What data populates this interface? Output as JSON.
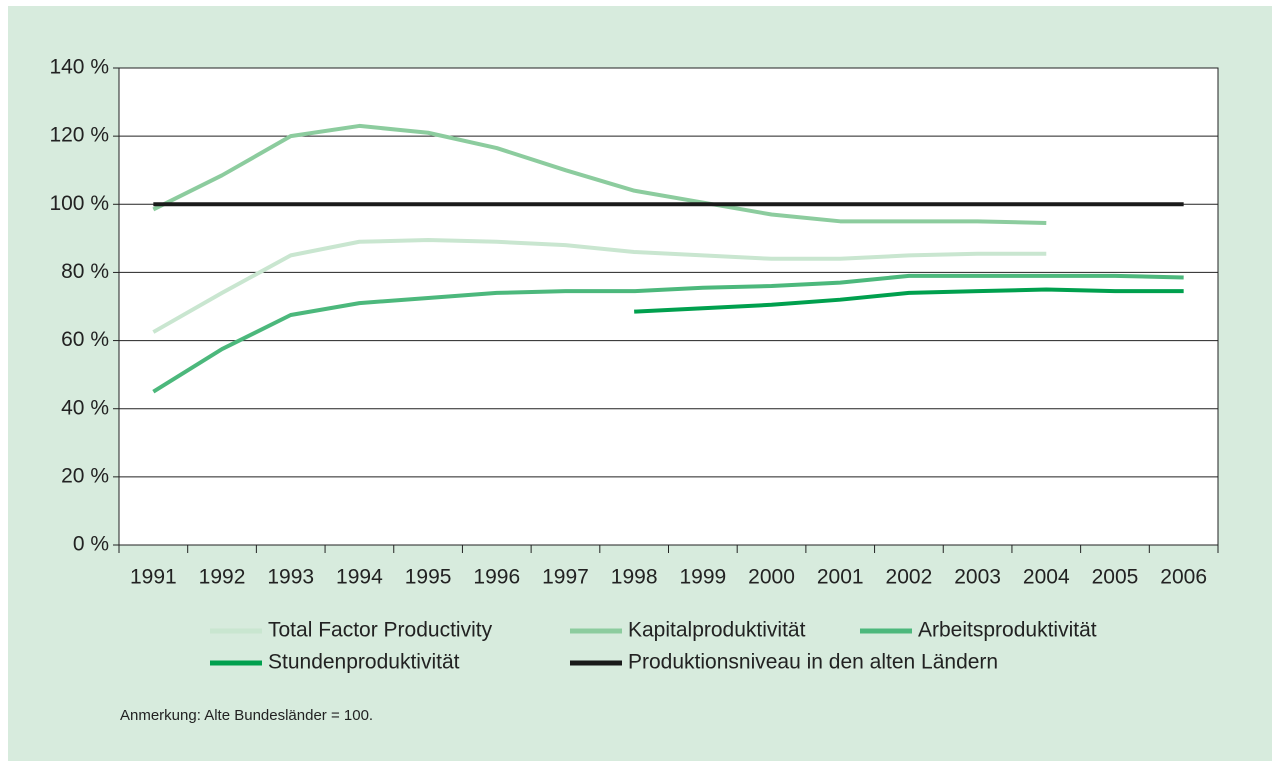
{
  "chart_data": {
    "type": "line",
    "categories": [
      "1991",
      "1992",
      "1993",
      "1994",
      "1995",
      "1996",
      "1997",
      "1998",
      "1999",
      "2000",
      "2001",
      "2002",
      "2003",
      "2004",
      "2005",
      "2006"
    ],
    "series": [
      {
        "name": "Total Factor Productivity",
        "color": "#c9e6d0",
        "values": [
          62.5,
          74,
          85,
          89,
          89.5,
          89,
          88,
          86,
          85,
          84,
          84,
          85,
          85.5,
          85.5,
          null,
          null
        ]
      },
      {
        "name": "Kapitalproduktivität",
        "color": "#8ccc9e",
        "values": [
          98.5,
          108.5,
          120,
          123,
          121,
          116.5,
          110,
          104,
          100.5,
          97,
          95,
          95,
          95,
          94.5,
          null,
          null
        ]
      },
      {
        "name": "Arbeitsproduktivität",
        "color": "#4cb87c",
        "values": [
          45,
          57.5,
          67.5,
          71,
          72.5,
          74,
          74.5,
          74.5,
          75.5,
          76,
          77,
          79,
          79,
          79,
          79,
          78.5
        ]
      },
      {
        "name": "Stundenproduktivität",
        "color": "#00a04e",
        "values": [
          null,
          null,
          null,
          null,
          null,
          null,
          null,
          68.5,
          69.5,
          70.5,
          72,
          74,
          74.5,
          75,
          74.5,
          74.5
        ]
      },
      {
        "name": "Produktionsniveau in den alten Ländern",
        "color": "#1a1a1a",
        "values": [
          100,
          100,
          100,
          100,
          100,
          100,
          100,
          100,
          100,
          100,
          100,
          100,
          100,
          100,
          100,
          100
        ]
      }
    ],
    "ylim": [
      0,
      140
    ],
    "yticks": [
      {
        "value": 0,
        "label": "0 %"
      },
      {
        "value": 20,
        "label": "20 %"
      },
      {
        "value": 40,
        "label": "40 %"
      },
      {
        "value": 60,
        "label": "60 %"
      },
      {
        "value": 80,
        "label": "80 %"
      },
      {
        "value": 100,
        "label": "100 %"
      },
      {
        "value": 120,
        "label": "120 %"
      },
      {
        "value": 140,
        "label": "140 %"
      }
    ],
    "grid": true,
    "note": "Anmerkung: Alte Bundesländer = 100."
  }
}
